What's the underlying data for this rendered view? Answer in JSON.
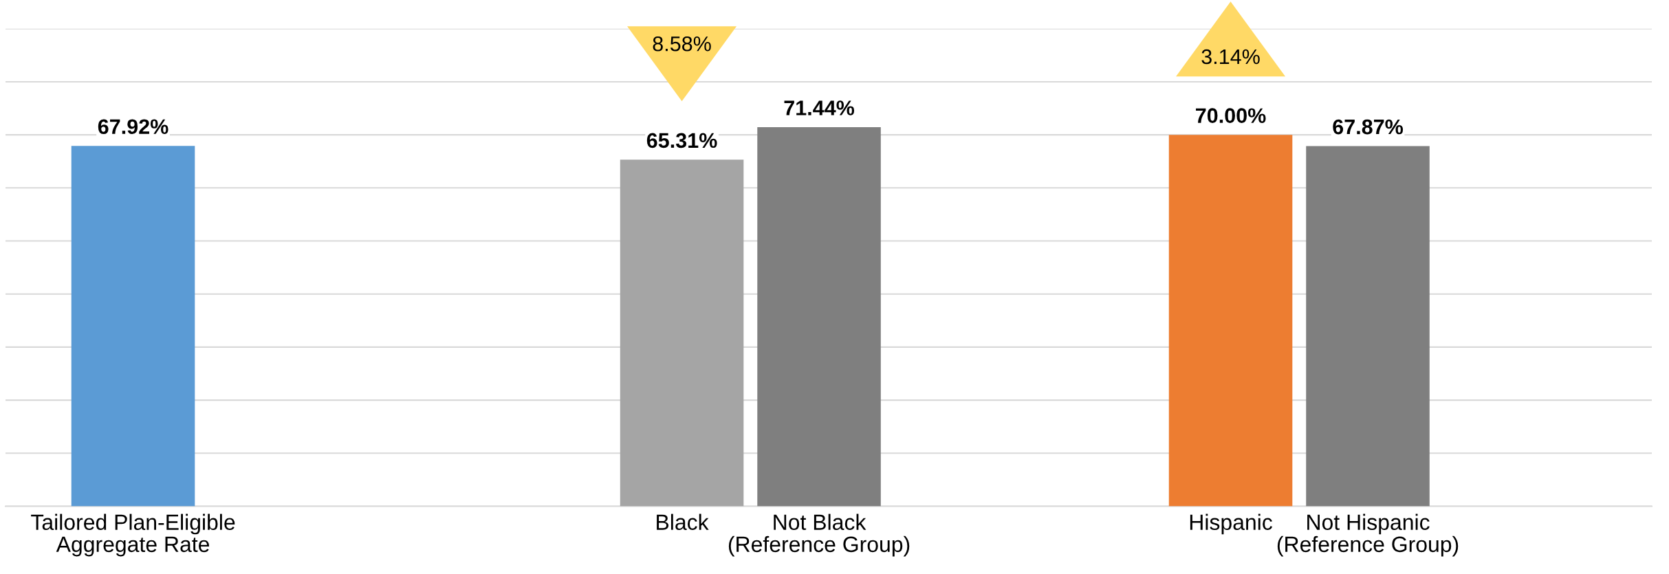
{
  "chart_data": {
    "type": "bar",
    "categories": [
      "Tailored Plan-Eligible\nAggregate Rate",
      null,
      null,
      null,
      "Black",
      "Not Black\n(Reference Group)",
      null,
      null,
      "Hispanic",
      "Not Hispanic\n(Reference Group)"
    ],
    "values": [
      67.92,
      null,
      null,
      null,
      65.31,
      71.44,
      null,
      null,
      70.0,
      67.87
    ],
    "colors": [
      "#5b9bd5",
      null,
      null,
      null,
      "#a5a5a5",
      "#7f7f7f",
      null,
      null,
      "#ed7d31",
      "#7f7f7f"
    ],
    "value_labels": [
      "67.92%",
      null,
      null,
      null,
      "65.31%",
      "71.44%",
      null,
      null,
      "70.00%",
      "67.87%"
    ],
    "yticks": [
      {
        "value": 0,
        "label": null
      },
      {
        "value": 10,
        "label": null
      },
      {
        "value": 20,
        "label": null
      },
      {
        "value": 30,
        "label": null
      },
      {
        "value": 40,
        "label": null
      },
      {
        "value": 50,
        "label": null
      },
      {
        "value": 60,
        "label": null
      },
      {
        "value": 70,
        "label": null
      },
      {
        "value": 80,
        "label": null
      },
      {
        "value": 90,
        "label": null
      }
    ],
    "grid": "y",
    "tick_labels": "x",
    "annotations": [
      "8.58%",
      "3.14%"
    ]
  }
}
